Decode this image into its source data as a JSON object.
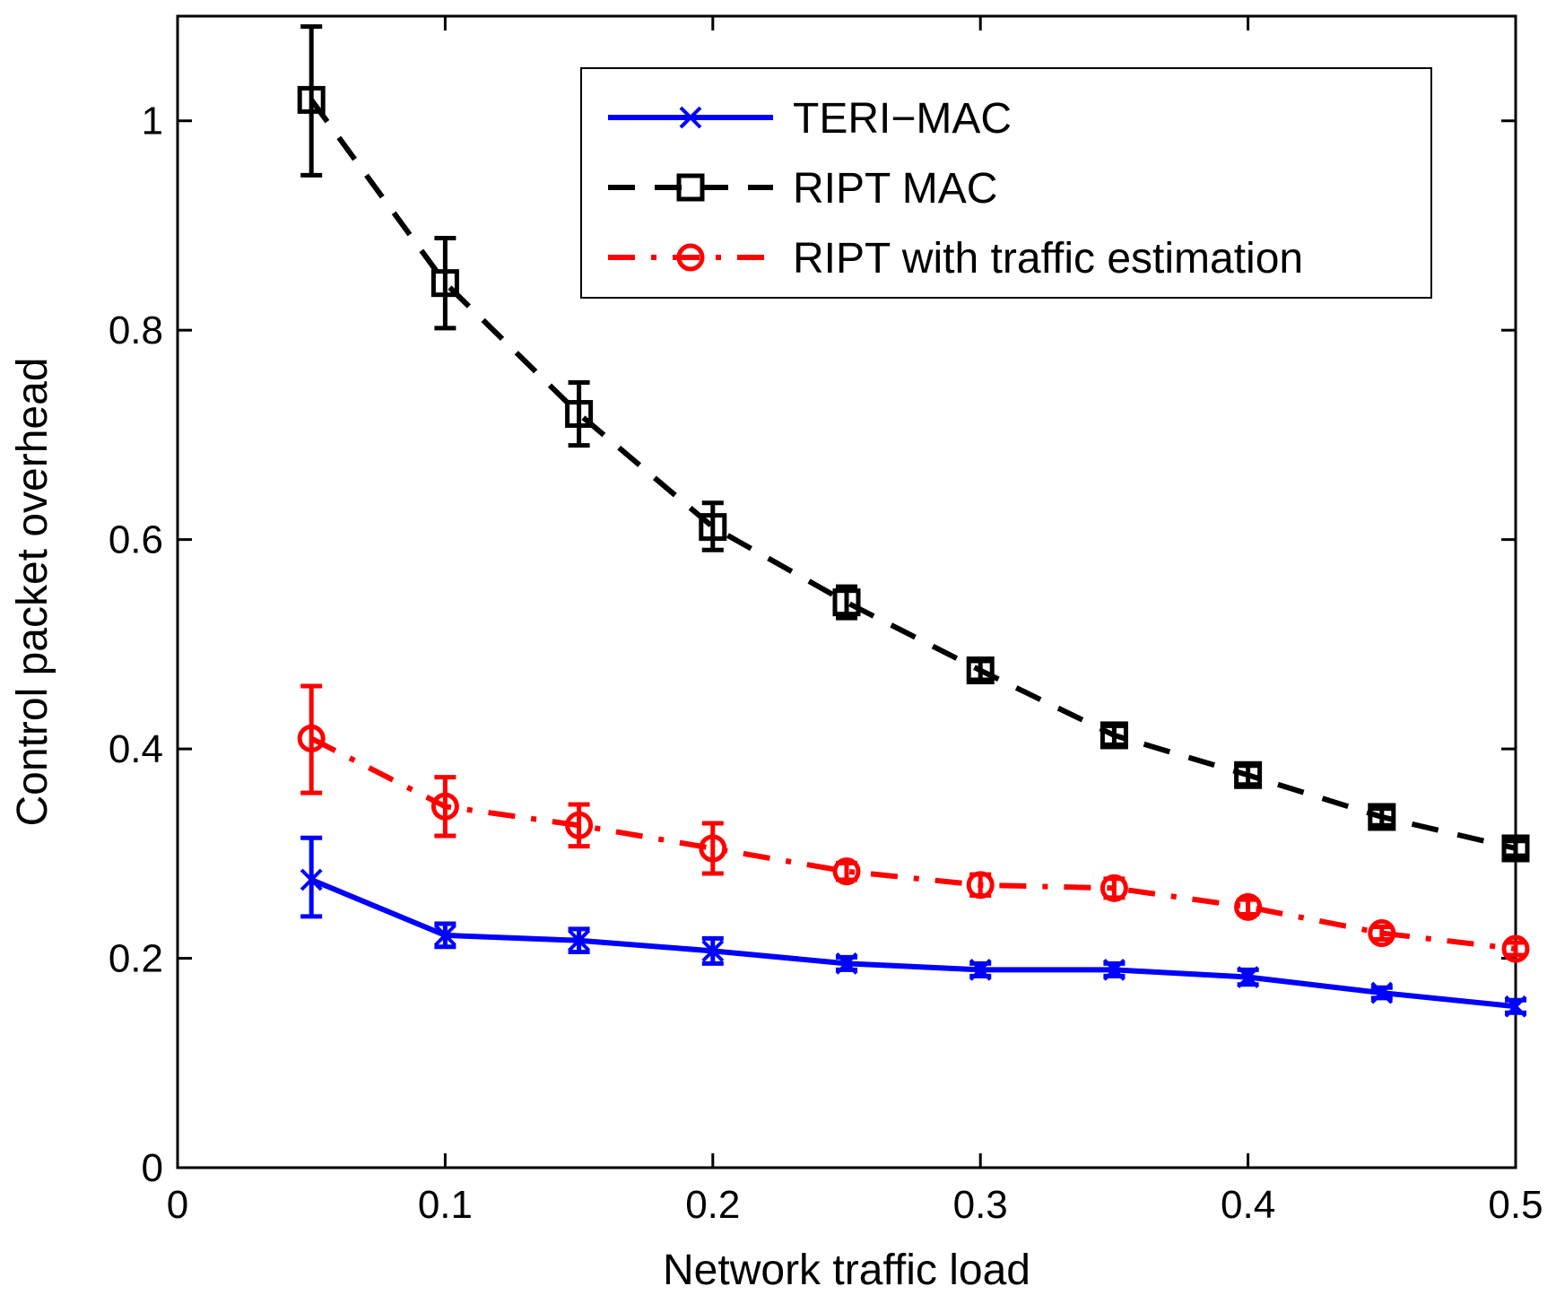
{
  "chart_data": {
    "type": "line",
    "title": "",
    "xlabel": "Network traffic load",
    "ylabel": "Control packet overhead",
    "xlim": [
      0,
      0.5
    ],
    "ylim": [
      0,
      1.1
    ],
    "xticks": [
      0,
      0.1,
      0.2,
      0.3,
      0.4,
      0.5
    ],
    "xtick_labels": [
      "0",
      "0.1",
      "0.2",
      "0.3",
      "0.4",
      "0.5"
    ],
    "yticks": [
      0,
      0.2,
      0.4,
      0.6,
      0.8,
      1.0
    ],
    "ytick_labels": [
      "0",
      "0.2",
      "0.4",
      "0.6",
      "0.8",
      "1"
    ],
    "grid": false,
    "legend_position": "top-right",
    "x": [
      0.05,
      0.1,
      0.15,
      0.2,
      0.25,
      0.3,
      0.35,
      0.4,
      0.45,
      0.5
    ],
    "series": [
      {
        "name": "TERI−MAC",
        "color": "#0000ff",
        "line_style": "solid",
        "marker": "x",
        "values": [
          0.275,
          0.222,
          0.217,
          0.207,
          0.195,
          0.189,
          0.189,
          0.182,
          0.167,
          0.154
        ],
        "err_low": [
          0.24,
          0.211,
          0.206,
          0.195,
          0.189,
          0.183,
          0.183,
          0.175,
          0.162,
          0.148
        ],
        "err_high": [
          0.315,
          0.233,
          0.228,
          0.219,
          0.201,
          0.195,
          0.195,
          0.189,
          0.172,
          0.16
        ]
      },
      {
        "name": "RIPT MAC",
        "color": "#000000",
        "line_style": "dashed",
        "marker": "square",
        "values": [
          1.02,
          0.845,
          0.72,
          0.612,
          0.54,
          0.475,
          0.413,
          0.375,
          0.335,
          0.305
        ],
        "err_low": [
          0.948,
          0.802,
          0.69,
          0.59,
          0.525,
          0.466,
          0.404,
          0.366,
          0.327,
          0.298
        ],
        "err_high": [
          1.09,
          0.888,
          0.75,
          0.635,
          0.555,
          0.484,
          0.422,
          0.384,
          0.343,
          0.312
        ]
      },
      {
        "name": "RIPT with traffic estimation",
        "color": "#ff0000",
        "line_style": "dashdot",
        "marker": "circle",
        "values": [
          0.41,
          0.345,
          0.327,
          0.305,
          0.283,
          0.27,
          0.267,
          0.249,
          0.224,
          0.209
        ],
        "err_low": [
          0.358,
          0.317,
          0.307,
          0.281,
          0.275,
          0.26,
          0.258,
          0.242,
          0.218,
          0.203
        ],
        "err_high": [
          0.46,
          0.373,
          0.347,
          0.329,
          0.291,
          0.28,
          0.276,
          0.256,
          0.23,
          0.215
        ]
      }
    ]
  }
}
